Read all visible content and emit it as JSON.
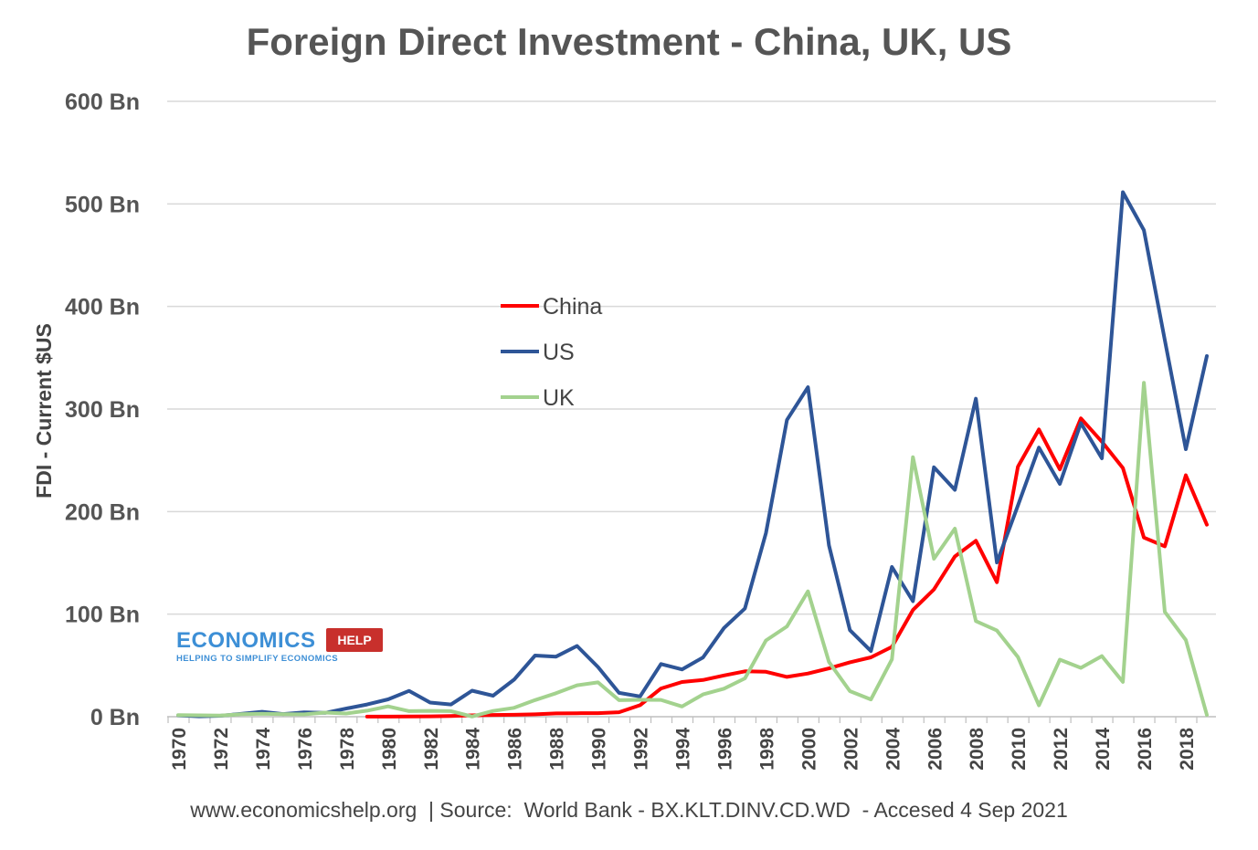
{
  "chart_data": {
    "type": "line",
    "title": "Foreign Direct Investment - China, UK, US",
    "ylabel": "FDI - Current $US",
    "xlabel": "",
    "ylim": [
      0,
      600
    ],
    "yticks": [
      {
        "value": 0,
        "label": "0 Bn"
      },
      {
        "value": 100,
        "label": "100 Bn"
      },
      {
        "value": 200,
        "label": "200 Bn"
      },
      {
        "value": 300,
        "label": "300 Bn"
      },
      {
        "value": 400,
        "label": "400 Bn"
      },
      {
        "value": 500,
        "label": "500 Bn"
      },
      {
        "value": 600,
        "label": "600 Bn"
      }
    ],
    "x": [
      1970,
      1971,
      1972,
      1973,
      1974,
      1975,
      1976,
      1977,
      1978,
      1979,
      1980,
      1981,
      1982,
      1983,
      1984,
      1985,
      1986,
      1987,
      1988,
      1989,
      1990,
      1991,
      1992,
      1993,
      1994,
      1995,
      1996,
      1997,
      1998,
      1999,
      2000,
      2001,
      2002,
      2003,
      2004,
      2005,
      2006,
      2007,
      2008,
      2009,
      2010,
      2011,
      2012,
      2013,
      2014,
      2015,
      2016,
      2017,
      2018,
      2019
    ],
    "xtick_labels": [
      "1970",
      "1972",
      "1974",
      "1976",
      "1978",
      "1980",
      "1982",
      "1984",
      "1986",
      "1988",
      "1990",
      "1992",
      "1994",
      "1996",
      "1998",
      "2000",
      "2002",
      "2004",
      "2006",
      "2008",
      "2010",
      "2012",
      "2014",
      "2016",
      "2018"
    ],
    "grid": "horizontal",
    "legend_position": "inside-upper-center",
    "series": [
      {
        "name": "China",
        "color": "#ff0000",
        "values": [
          null,
          null,
          null,
          null,
          null,
          null,
          null,
          null,
          null,
          0.1,
          0.1,
          0.3,
          0.4,
          0.6,
          1.3,
          1.7,
          1.9,
          2.3,
          3.2,
          3.4,
          3.5,
          4.4,
          11.2,
          27.5,
          33.8,
          35.8,
          40.2,
          44.2,
          43.8,
          38.8,
          42.1,
          47.1,
          53.1,
          57.9,
          68.1,
          104.1,
          124.1,
          156.2,
          171.5,
          131.1,
          243.7,
          280.1,
          241.2,
          290.9,
          268.1,
          242.5,
          174.7,
          166.1,
          235.4,
          187.2
        ]
      },
      {
        "name": "US",
        "color": "#2e5597",
        "values": [
          1.3,
          0.4,
          0.9,
          2.8,
          4.8,
          2.6,
          4.3,
          3.7,
          7.9,
          11.9,
          16.9,
          25.2,
          13.8,
          11.9,
          25.4,
          20.5,
          36.1,
          59.6,
          58.6,
          69.0,
          48.4,
          23.2,
          19.8,
          51.4,
          46.1,
          57.8,
          86.5,
          105.6,
          179.0,
          289.4,
          321.3,
          167.0,
          84.4,
          64.0,
          146.0,
          112.6,
          243.2,
          221.2,
          310.1,
          150.4,
          205.9,
          262.4,
          227.0,
          286.3,
          251.9,
          511.4,
          474.4,
          367.2,
          260.8,
          351.6
        ]
      },
      {
        "name": "UK",
        "color": "#a3d28e",
        "values": [
          1.5,
          1.3,
          1.1,
          2.4,
          2.9,
          2.5,
          2.3,
          4.0,
          3.1,
          5.9,
          10.1,
          5.4,
          5.7,
          5.4,
          0.2,
          5.6,
          8.6,
          16.2,
          22.9,
          30.6,
          33.5,
          16.1,
          16.5,
          16.4,
          10.0,
          21.7,
          27.3,
          37.4,
          74.3,
          88.0,
          122.2,
          53.3,
          24.9,
          16.8,
          55.9,
          253.1,
          154.0,
          183.4,
          93.2,
          84.0,
          58.2,
          11.0,
          55.6,
          47.6,
          59.1,
          33.9,
          325.6,
          102.2,
          74.8,
          1.8
        ]
      }
    ]
  },
  "branding": {
    "logo_text": "ECONOMICS",
    "logo_tag": "HELP",
    "logo_subtitle": "HELPING TO SIMPLIFY ECONOMICS"
  },
  "footer": "www.economicshelp.org  | Source:  World Bank - BX.KLT.DINV.CD.WD  - Accesed 4 Sep 2021"
}
